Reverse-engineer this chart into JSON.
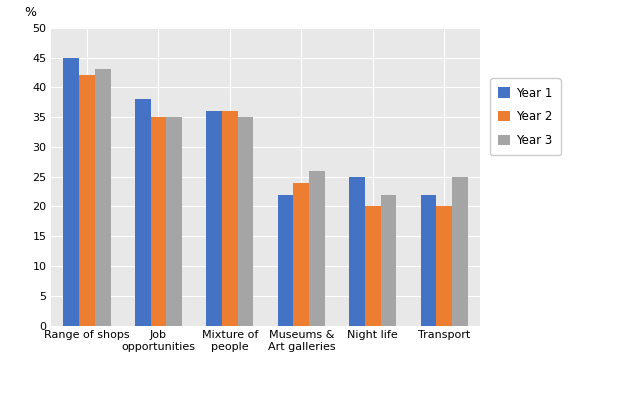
{
  "categories": [
    "Range of shops",
    "Job\nopportunities",
    "Mixture of\npeople",
    "Museums &\nArt galleries",
    "Night life",
    "Transport"
  ],
  "series": {
    "Year 1": [
      45,
      38,
      36,
      22,
      25,
      22
    ],
    "Year 2": [
      42,
      35,
      36,
      24,
      20,
      20
    ],
    "Year 3": [
      43,
      35,
      35,
      26,
      22,
      25
    ]
  },
  "colors": {
    "Year 1": "#4472C4",
    "Year 2": "#ED7D31",
    "Year 3": "#A5A5A5"
  },
  "ylabel": "%",
  "ylim": [
    0,
    50
  ],
  "yticks": [
    0,
    5,
    10,
    15,
    20,
    25,
    30,
    35,
    40,
    45,
    50
  ],
  "legend_labels": [
    "Year 1",
    "Year 2",
    "Year 3"
  ],
  "plot_bg": "#e8e8e8",
  "figure_bg": "#ffffff",
  "bar_width": 0.22,
  "grid_color": "#ffffff"
}
